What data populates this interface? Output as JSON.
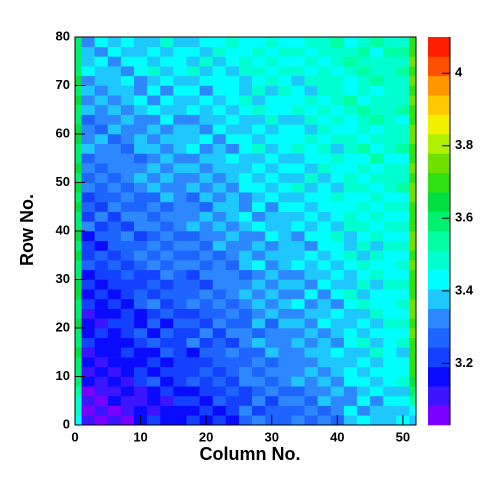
{
  "chart_data": {
    "type": "heatmap",
    "x_label": "Column No.",
    "y_label": "Row No.",
    "xlim": [
      0,
      52
    ],
    "ylim": [
      0,
      80
    ],
    "xticks": [
      0,
      10,
      20,
      30,
      40,
      50
    ],
    "yticks": [
      0,
      10,
      20,
      30,
      40,
      50,
      60,
      70,
      80
    ],
    "zlim": [
      3.03,
      4.1
    ],
    "zticks": [
      3.2,
      3.4,
      3.6,
      3.8,
      4
    ],
    "palette": [
      "#7a00ff",
      "#3c14ff",
      "#0a0aff",
      "#1440ff",
      "#1e64ff",
      "#2d87ff",
      "#1ec8ff",
      "#00ffff",
      "#00ffd0",
      "#00ffa0",
      "#00f070",
      "#00e040",
      "#30e010",
      "#70e000",
      "#b0f000",
      "#f0f000",
      "#ffc800",
      "#ff9600",
      "#ff5000",
      "#ff1e00"
    ],
    "xbins": [
      0,
      1,
      3,
      5,
      7,
      9,
      11,
      13,
      15,
      17,
      19,
      21,
      23,
      25,
      27,
      29,
      31,
      33,
      35,
      37,
      39,
      41,
      43,
      45,
      47,
      49,
      51,
      52
    ],
    "ybins": [
      0,
      2,
      4,
      6,
      8,
      10,
      12,
      14,
      16,
      18,
      20,
      22,
      24,
      26,
      28,
      30,
      32,
      34,
      36,
      38,
      40,
      42,
      44,
      46,
      48,
      50,
      52,
      54,
      56,
      58,
      60,
      62,
      64,
      66,
      68,
      70,
      72,
      74,
      76,
      78,
      80
    ],
    "values": [
      [
        3.42,
        3.12,
        3.06,
        3.12,
        3.07,
        3.16,
        3.2,
        3.14,
        3.18,
        3.23,
        3.17,
        3.23,
        3.18,
        3.27,
        3.31,
        3.25,
        3.29,
        3.34,
        3.28,
        3.34,
        3.29,
        3.38,
        3.42,
        3.36,
        3.4,
        3.45,
        3.4
      ],
      [
        3.48,
        3.06,
        3.12,
        3.07,
        3.13,
        3.19,
        3.12,
        3.18,
        3.17,
        3.17,
        3.23,
        3.18,
        3.24,
        3.3,
        3.23,
        3.29,
        3.28,
        3.28,
        3.34,
        3.29,
        3.35,
        3.41,
        3.34,
        3.4,
        3.39,
        3.39,
        3.45
      ],
      [
        3.5,
        3.09,
        3.04,
        3.14,
        3.12,
        3.12,
        3.19,
        3.12,
        3.2,
        3.2,
        3.15,
        3.25,
        3.23,
        3.23,
        3.3,
        3.23,
        3.31,
        3.31,
        3.26,
        3.36,
        3.34,
        3.34,
        3.41,
        3.34,
        3.42,
        3.42,
        3.52
      ],
      [
        3.55,
        3.04,
        3.11,
        3.11,
        3.16,
        3.11,
        3.14,
        3.21,
        3.16,
        3.15,
        3.22,
        3.22,
        3.27,
        3.22,
        3.25,
        3.32,
        3.27,
        3.26,
        3.33,
        3.33,
        3.38,
        3.33,
        3.36,
        3.43,
        3.38,
        3.37,
        3.58
      ],
      [
        3.58,
        3.17,
        3.11,
        3.17,
        3.12,
        3.2,
        3.25,
        3.19,
        3.22,
        3.27,
        3.22,
        3.27,
        3.22,
        3.31,
        3.35,
        3.29,
        3.33,
        3.38,
        3.32,
        3.37,
        3.33,
        3.41,
        3.45,
        3.4,
        3.43,
        3.48,
        3.65
      ],
      [
        3.6,
        3.11,
        3.17,
        3.12,
        3.18,
        3.23,
        3.17,
        3.23,
        3.21,
        3.21,
        3.28,
        3.22,
        3.28,
        3.34,
        3.27,
        3.33,
        3.32,
        3.32,
        3.38,
        3.32,
        3.39,
        3.44,
        3.37,
        3.44,
        3.42,
        3.42,
        3.7
      ],
      [
        3.57,
        3.14,
        3.09,
        3.19,
        3.17,
        3.16,
        3.24,
        3.17,
        3.24,
        3.24,
        3.2,
        3.29,
        3.27,
        3.27,
        3.34,
        3.27,
        3.35,
        3.35,
        3.3,
        3.39,
        3.38,
        3.37,
        3.44,
        3.38,
        3.45,
        3.45,
        3.72
      ],
      [
        3.62,
        3.09,
        3.16,
        3.16,
        3.21,
        3.15,
        3.19,
        3.26,
        3.2,
        3.19,
        3.27,
        3.26,
        3.31,
        3.26,
        3.29,
        3.36,
        3.31,
        3.3,
        3.37,
        3.36,
        3.42,
        3.36,
        3.39,
        3.47,
        3.41,
        3.4,
        3.68
      ],
      [
        3.59,
        3.2,
        3.14,
        3.19,
        3.15,
        3.23,
        3.27,
        3.21,
        3.24,
        3.3,
        3.24,
        3.29,
        3.24,
        3.32,
        3.37,
        3.31,
        3.34,
        3.39,
        3.33,
        3.39,
        3.34,
        3.42,
        3.46,
        3.4,
        3.44,
        3.49,
        3.71
      ],
      [
        3.61,
        3.14,
        3.2,
        3.14,
        3.21,
        3.26,
        3.19,
        3.25,
        3.23,
        3.24,
        3.3,
        3.24,
        3.3,
        3.35,
        3.29,
        3.35,
        3.33,
        3.33,
        3.39,
        3.34,
        3.4,
        3.45,
        3.38,
        3.44,
        3.43,
        3.43,
        3.74
      ],
      [
        3.63,
        3.17,
        3.12,
        3.21,
        3.2,
        3.19,
        3.26,
        3.19,
        3.26,
        3.27,
        3.22,
        3.31,
        3.29,
        3.28,
        3.36,
        3.29,
        3.36,
        3.36,
        3.31,
        3.41,
        3.39,
        3.38,
        3.45,
        3.38,
        3.46,
        3.46,
        3.7
      ],
      [
        3.58,
        3.12,
        3.19,
        3.18,
        3.24,
        3.18,
        3.21,
        3.28,
        3.22,
        3.22,
        3.29,
        3.28,
        3.33,
        3.27,
        3.31,
        3.38,
        3.32,
        3.31,
        3.38,
        3.38,
        3.43,
        3.37,
        3.4,
        3.47,
        3.42,
        3.41,
        3.73
      ],
      [
        3.6,
        3.23,
        3.17,
        3.22,
        3.17,
        3.25,
        3.3,
        3.24,
        3.27,
        3.32,
        3.26,
        3.31,
        3.26,
        3.34,
        3.38,
        3.32,
        3.36,
        3.41,
        3.35,
        3.4,
        3.35,
        3.43,
        3.47,
        3.41,
        3.44,
        3.5,
        3.75
      ],
      [
        3.62,
        3.17,
        3.23,
        3.17,
        3.23,
        3.28,
        3.22,
        3.28,
        3.26,
        3.26,
        3.32,
        3.26,
        3.32,
        3.37,
        3.3,
        3.36,
        3.35,
        3.35,
        3.41,
        3.35,
        3.41,
        3.46,
        3.39,
        3.45,
        3.43,
        3.44,
        3.71
      ],
      [
        3.64,
        3.2,
        3.15,
        3.24,
        3.22,
        3.21,
        3.29,
        3.22,
        3.29,
        3.29,
        3.24,
        3.33,
        3.31,
        3.3,
        3.37,
        3.3,
        3.38,
        3.38,
        3.33,
        3.42,
        3.4,
        3.39,
        3.46,
        3.39,
        3.46,
        3.47,
        3.69
      ],
      [
        3.59,
        3.15,
        3.22,
        3.21,
        3.26,
        3.2,
        3.24,
        3.31,
        3.25,
        3.24,
        3.31,
        3.3,
        3.35,
        3.29,
        3.32,
        3.39,
        3.34,
        3.33,
        3.4,
        3.39,
        3.44,
        3.38,
        3.41,
        3.48,
        3.42,
        3.42,
        3.72
      ],
      [
        3.61,
        3.27,
        3.21,
        3.26,
        3.21,
        3.29,
        3.33,
        3.27,
        3.3,
        3.35,
        3.29,
        3.34,
        3.29,
        3.37,
        3.41,
        3.35,
        3.38,
        3.43,
        3.37,
        3.42,
        3.37,
        3.44,
        3.48,
        3.42,
        3.45,
        3.5,
        3.74
      ],
      [
        3.63,
        3.21,
        3.27,
        3.21,
        3.27,
        3.32,
        3.25,
        3.31,
        3.29,
        3.29,
        3.35,
        3.29,
        3.35,
        3.4,
        3.33,
        3.39,
        3.37,
        3.37,
        3.43,
        3.37,
        3.43,
        3.47,
        3.4,
        3.46,
        3.44,
        3.44,
        3.7
      ],
      [
        3.6,
        3.24,
        3.19,
        3.28,
        3.26,
        3.25,
        3.32,
        3.25,
        3.32,
        3.32,
        3.27,
        3.36,
        3.34,
        3.33,
        3.4,
        3.33,
        3.4,
        3.4,
        3.35,
        3.44,
        3.42,
        3.4,
        3.47,
        3.4,
        3.47,
        3.47,
        3.73
      ],
      [
        3.62,
        3.19,
        3.26,
        3.25,
        3.3,
        3.24,
        3.27,
        3.34,
        3.28,
        3.27,
        3.34,
        3.33,
        3.38,
        3.32,
        3.35,
        3.42,
        3.36,
        3.35,
        3.42,
        3.41,
        3.46,
        3.39,
        3.42,
        3.49,
        3.43,
        3.42,
        3.76
      ],
      [
        3.58,
        3.3,
        3.24,
        3.29,
        3.24,
        3.32,
        3.35,
        3.29,
        3.32,
        3.37,
        3.31,
        3.36,
        3.31,
        3.39,
        3.42,
        3.36,
        3.39,
        3.44,
        3.38,
        3.43,
        3.38,
        3.46,
        3.49,
        3.43,
        3.46,
        3.51,
        3.71
      ],
      [
        3.61,
        3.24,
        3.3,
        3.24,
        3.3,
        3.35,
        3.27,
        3.33,
        3.31,
        3.31,
        3.37,
        3.31,
        3.37,
        3.42,
        3.34,
        3.4,
        3.38,
        3.38,
        3.44,
        3.38,
        3.44,
        3.49,
        3.41,
        3.47,
        3.45,
        3.45,
        3.72
      ],
      [
        3.64,
        3.27,
        3.22,
        3.31,
        3.29,
        3.28,
        3.34,
        3.27,
        3.34,
        3.34,
        3.29,
        3.38,
        3.36,
        3.35,
        3.41,
        3.34,
        3.41,
        3.41,
        3.36,
        3.45,
        3.43,
        3.42,
        3.48,
        3.41,
        3.48,
        3.48,
        3.69
      ],
      [
        3.6,
        3.22,
        3.29,
        3.28,
        3.33,
        3.27,
        3.29,
        3.36,
        3.3,
        3.29,
        3.36,
        3.35,
        3.4,
        3.34,
        3.36,
        3.43,
        3.37,
        3.36,
        3.43,
        3.42,
        3.47,
        3.41,
        3.43,
        3.5,
        3.44,
        3.43,
        3.74
      ],
      [
        3.62,
        3.33,
        3.27,
        3.32,
        3.26,
        3.34,
        3.38,
        3.32,
        3.35,
        3.39,
        3.33,
        3.38,
        3.33,
        3.41,
        3.44,
        3.38,
        3.41,
        3.46,
        3.4,
        3.44,
        3.39,
        3.47,
        3.51,
        3.45,
        3.47,
        3.52,
        3.73
      ],
      [
        3.59,
        3.27,
        3.33,
        3.27,
        3.32,
        3.37,
        3.3,
        3.36,
        3.34,
        3.33,
        3.39,
        3.33,
        3.39,
        3.44,
        3.36,
        3.42,
        3.4,
        3.4,
        3.46,
        3.39,
        3.45,
        3.5,
        3.43,
        3.49,
        3.46,
        3.46,
        3.7
      ],
      [
        3.63,
        3.3,
        3.25,
        3.34,
        3.31,
        3.3,
        3.37,
        3.3,
        3.37,
        3.36,
        3.31,
        3.4,
        3.38,
        3.37,
        3.43,
        3.36,
        3.43,
        3.43,
        3.38,
        3.46,
        3.44,
        3.43,
        3.5,
        3.43,
        3.49,
        3.49,
        3.75
      ],
      [
        3.61,
        3.25,
        3.32,
        3.31,
        3.35,
        3.29,
        3.32,
        3.39,
        3.33,
        3.31,
        3.38,
        3.37,
        3.42,
        3.36,
        3.38,
        3.45,
        3.39,
        3.38,
        3.45,
        3.43,
        3.48,
        3.42,
        3.45,
        3.52,
        3.45,
        3.44,
        3.72
      ],
      [
        3.6,
        3.36,
        3.3,
        3.34,
        3.29,
        3.37,
        3.4,
        3.34,
        3.37,
        3.42,
        3.35,
        3.4,
        3.35,
        3.42,
        3.46,
        3.4,
        3.42,
        3.47,
        3.41,
        3.46,
        3.4,
        3.48,
        3.52,
        3.45,
        3.48,
        3.53,
        3.71
      ],
      [
        3.64,
        3.3,
        3.36,
        3.29,
        3.35,
        3.4,
        3.32,
        3.38,
        3.36,
        3.36,
        3.41,
        3.35,
        3.41,
        3.45,
        3.38,
        3.44,
        3.41,
        3.41,
        3.47,
        3.41,
        3.46,
        3.51,
        3.44,
        3.49,
        3.47,
        3.47,
        3.73
      ],
      [
        3.62,
        3.33,
        3.28,
        3.36,
        3.34,
        3.33,
        3.39,
        3.32,
        3.39,
        3.39,
        3.33,
        3.42,
        3.4,
        3.38,
        3.45,
        3.38,
        3.44,
        3.44,
        3.39,
        3.48,
        3.45,
        3.44,
        3.51,
        3.43,
        3.5,
        3.5,
        3.76
      ],
      [
        3.58,
        3.28,
        3.35,
        3.33,
        3.38,
        3.32,
        3.34,
        3.41,
        3.35,
        3.34,
        3.4,
        3.39,
        3.44,
        3.37,
        3.4,
        3.47,
        3.4,
        3.39,
        3.46,
        3.45,
        3.49,
        3.43,
        3.46,
        3.52,
        3.46,
        3.45,
        3.7
      ],
      [
        3.61,
        3.39,
        3.33,
        3.37,
        3.32,
        3.39,
        3.43,
        3.37,
        3.39,
        3.44,
        3.37,
        3.42,
        3.36,
        3.44,
        3.48,
        3.41,
        3.44,
        3.48,
        3.42,
        3.47,
        3.41,
        3.49,
        3.52,
        3.46,
        3.49,
        3.54,
        3.72
      ],
      [
        3.63,
        3.33,
        3.39,
        3.32,
        3.38,
        3.42,
        3.35,
        3.41,
        3.38,
        3.38,
        3.43,
        3.37,
        3.42,
        3.47,
        3.4,
        3.45,
        3.43,
        3.42,
        3.48,
        3.42,
        3.47,
        3.52,
        3.44,
        3.5,
        3.48,
        3.48,
        3.74
      ],
      [
        3.6,
        3.36,
        3.31,
        3.39,
        3.37,
        3.35,
        3.42,
        3.35,
        3.41,
        3.41,
        3.35,
        3.44,
        3.41,
        3.4,
        3.47,
        3.39,
        3.46,
        3.45,
        3.4,
        3.49,
        3.46,
        3.45,
        3.51,
        3.44,
        3.51,
        3.51,
        3.69
      ],
      [
        3.62,
        3.31,
        3.38,
        3.36,
        3.41,
        3.34,
        3.37,
        3.44,
        3.37,
        3.36,
        3.42,
        3.41,
        3.45,
        3.39,
        3.42,
        3.48,
        3.42,
        3.4,
        3.47,
        3.46,
        3.5,
        3.44,
        3.46,
        3.53,
        3.47,
        3.46,
        3.73
      ],
      [
        3.59,
        3.42,
        3.36,
        3.4,
        3.35,
        3.42,
        3.46,
        3.39,
        3.42,
        3.46,
        3.4,
        3.44,
        3.39,
        3.46,
        3.5,
        3.43,
        3.46,
        3.5,
        3.44,
        3.48,
        3.43,
        3.5,
        3.54,
        3.47,
        3.5,
        3.55,
        3.71
      ],
      [
        3.61,
        3.36,
        3.42,
        3.35,
        3.41,
        3.45,
        3.38,
        3.43,
        3.41,
        3.4,
        3.46,
        3.39,
        3.45,
        3.49,
        3.42,
        3.47,
        3.45,
        3.44,
        3.5,
        3.43,
        3.49,
        3.53,
        3.46,
        3.51,
        3.49,
        3.49,
        3.75
      ],
      [
        3.57,
        3.39,
        3.34,
        3.42,
        3.4,
        3.38,
        3.45,
        3.37,
        3.44,
        3.43,
        3.38,
        3.46,
        3.44,
        3.42,
        3.49,
        3.41,
        3.48,
        3.47,
        3.42,
        3.5,
        3.48,
        3.46,
        3.53,
        3.45,
        3.52,
        3.52,
        3.72
      ],
      [
        3.6,
        3.34,
        3.41,
        3.39,
        3.44,
        3.37,
        3.4,
        3.46,
        3.4,
        3.38,
        3.45,
        3.43,
        3.48,
        3.41,
        3.44,
        3.5,
        3.44,
        3.43,
        3.49,
        3.47,
        3.52,
        3.45,
        3.48,
        3.54,
        3.48,
        3.47,
        3.7
      ]
    ]
  }
}
